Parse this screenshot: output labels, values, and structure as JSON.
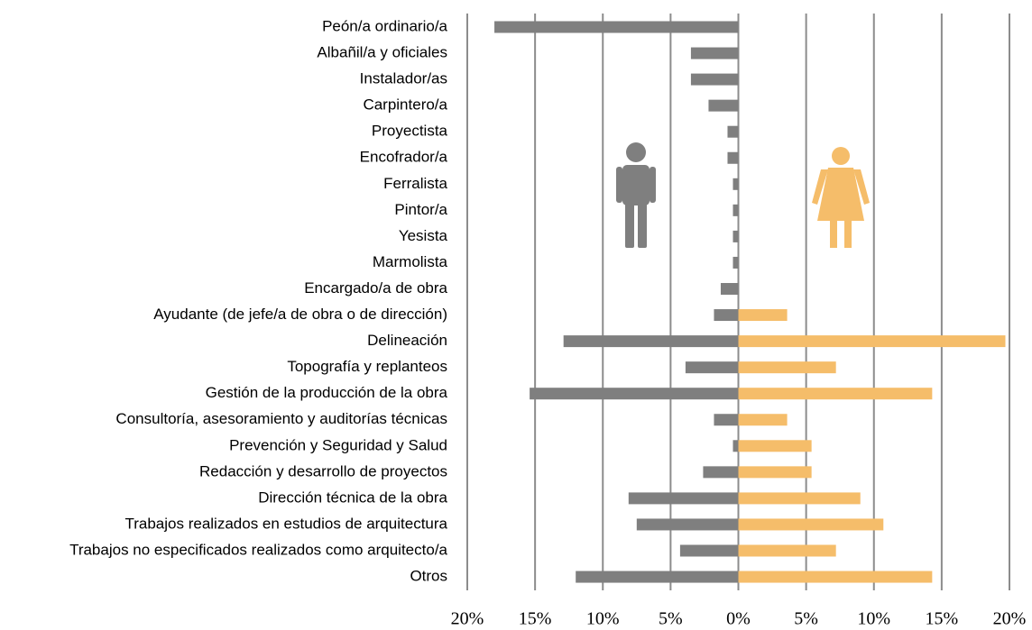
{
  "chart_data": {
    "type": "diverging-bar",
    "categories": [
      "Peón/a ordinario/a",
      "Albañil/a y oficiales",
      "Instalador/as",
      "Carpintero/a",
      "Proyectista",
      "Encofrador/a",
      "Ferralista",
      "Pintor/a",
      "Yesista",
      "Marmolista",
      "Encargado/a de obra",
      "Ayudante (de jefe/a de obra o de dirección)",
      "Delineación",
      "Topografía y replanteos",
      "Gestión de la producción de la obra",
      "Consultoría, asesoramiento y auditorías técnicas",
      "Prevención y Seguridad y Salud",
      "Redacción y desarrollo de proyectos",
      "Dirección técnica de la obra",
      "Trabajos realizados en estudios de arquitectura",
      "Trabajos no especificados realizados como arquitecto/a",
      "Otros"
    ],
    "series": [
      {
        "color": "#7f7f7f",
        "values": [
          -18,
          -3.5,
          -3.5,
          -2.2,
          -0.8,
          -0.8,
          -0.4,
          -0.4,
          -0.4,
          -0.4,
          -1.3,
          -1.8,
          -12.9,
          -3.9,
          -15.4,
          -1.8,
          -0.4,
          -2.6,
          -8.1,
          -7.5,
          -4.3,
          -12
        ]
      },
      {
        "color": "#f5bd6a",
        "values": [
          0,
          0,
          0,
          0,
          0,
          0,
          0,
          0,
          0,
          0,
          0,
          3.6,
          19.7,
          7.2,
          14.3,
          3.6,
          5.4,
          5.4,
          9.0,
          10.7,
          7.2,
          14.3
        ]
      }
    ],
    "xlim": [
      -20,
      20
    ],
    "xticks": [
      {
        "value": -20,
        "label": "20%"
      },
      {
        "value": -15,
        "label": "15%"
      },
      {
        "value": -10,
        "label": "10%"
      },
      {
        "value": -5,
        "label": "5%"
      },
      {
        "value": 0,
        "label": "0%"
      },
      {
        "value": 5,
        "label": "5%"
      },
      {
        "value": 10,
        "label": "10%"
      },
      {
        "value": 15,
        "label": "15%"
      },
      {
        "value": 20,
        "label": "20%"
      }
    ],
    "grid": true
  }
}
